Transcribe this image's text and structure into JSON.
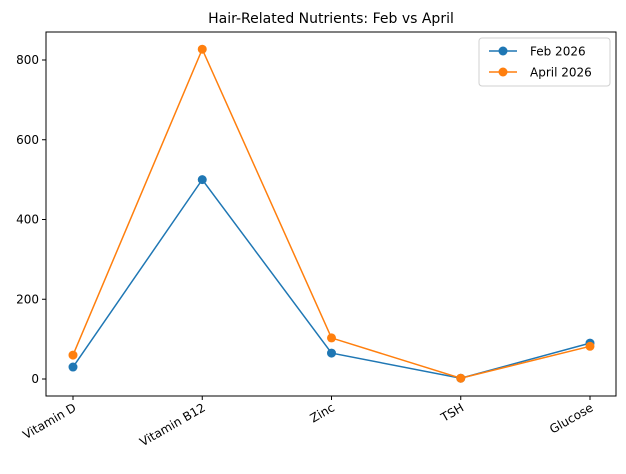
{
  "chart_data": {
    "type": "line",
    "title": "Hair-Related Nutrients: Feb vs April",
    "xlabel": "",
    "ylabel": "",
    "categories": [
      "Vitamin D",
      "Vitamin B12",
      "Zinc",
      "TSH",
      "Glucose"
    ],
    "series": [
      {
        "name": "Feb 2026",
        "color": "#1f77b4",
        "marker": "circle",
        "values": [
          30,
          500,
          65,
          2,
          90
        ]
      },
      {
        "name": "April 2026",
        "color": "#ff7f0e",
        "marker": "circle",
        "values": [
          60,
          827,
          103,
          2,
          82
        ]
      }
    ],
    "ylim": [
      -39,
      870
    ],
    "yticks": [
      0,
      200,
      400,
      600,
      800
    ],
    "xtick_rotation": 30,
    "grid": false,
    "legend_position": "upper right"
  }
}
